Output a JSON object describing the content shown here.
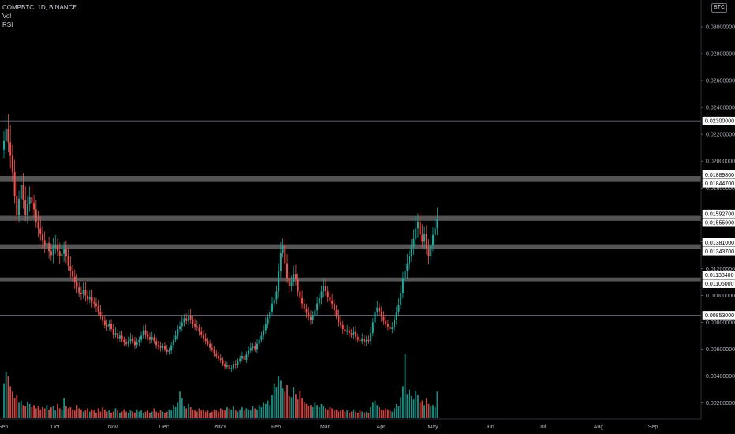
{
  "legend": {
    "symbol": "COMPBTC, 1D, BINANCE",
    "volume": "Vol",
    "rsi": "RSI"
  },
  "currency_badge": "BTC",
  "colors": {
    "background": "#000000",
    "up": "#26a69a",
    "down": "#ef5350",
    "zone": "#9a9a9a",
    "text": "#d1d4dc"
  },
  "chart_data": {
    "type": "candlestick",
    "price_axis": {
      "ylim": [
        0.0008,
        0.032
      ],
      "ticks": [
        "0.00200000",
        "0.00400000",
        "0.00600000",
        "0.00800000",
        "0.01000000",
        "0.01200000",
        "0.01400000",
        "0.01600000",
        "0.01800000",
        "0.02000000",
        "0.02200000",
        "0.02400000",
        "0.02600000",
        "0.02800000",
        "0.03000000"
      ]
    },
    "time_axis": {
      "labels": [
        "Sep",
        "Oct",
        "Nov",
        "Dec",
        "2021",
        "Feb",
        "Mar",
        "Apr",
        "May",
        "Jun",
        "Jul",
        "Aug",
        "Sep"
      ]
    },
    "levels": [
      {
        "label": "0.02300000",
        "value": 0.023,
        "type": "line"
      },
      {
        "label": "0.00853000",
        "value": 0.00853,
        "type": "line"
      }
    ],
    "zones": [
      {
        "top_label": "0.01889800",
        "bottom_label": "0.01844700",
        "top": 0.018898,
        "bottom": 0.018447
      },
      {
        "top_label": "0.01592700",
        "bottom_label": "0.01555900",
        "top": 0.015927,
        "bottom": 0.015559
      },
      {
        "top_label": "0.01381000",
        "bottom_label": "0.01343700",
        "top": 0.01381,
        "bottom": 0.013437
      },
      {
        "top_label": "0.01133400",
        "bottom_label": "0.01105000",
        "top": 0.011334,
        "bottom": 0.01105
      }
    ],
    "closes": [
      0.0215,
      0.0224,
      0.0214,
      0.0204,
      0.0192,
      0.0174,
      0.016,
      0.0172,
      0.0182,
      0.0171,
      0.016,
      0.0168,
      0.0173,
      0.0169,
      0.0164,
      0.0155,
      0.015,
      0.0146,
      0.0141,
      0.0137,
      0.0139,
      0.0133,
      0.013,
      0.0136,
      0.0137,
      0.0133,
      0.0129,
      0.0131,
      0.0135,
      0.0129,
      0.0122,
      0.0118,
      0.0114,
      0.011,
      0.0106,
      0.0102,
      0.0101,
      0.0104,
      0.01,
      0.0097,
      0.0099,
      0.0095,
      0.0094,
      0.0092,
      0.0088,
      0.0085,
      0.0081,
      0.0078,
      0.0077,
      0.0079,
      0.0075,
      0.0071,
      0.0072,
      0.0068,
      0.007,
      0.0067,
      0.0065,
      0.0064,
      0.0066,
      0.0068,
      0.0066,
      0.0063,
      0.0065,
      0.0067,
      0.007,
      0.0074,
      0.0071,
      0.0069,
      0.0067,
      0.0069,
      0.0066,
      0.0063,
      0.0062,
      0.0061,
      0.0062,
      0.006,
      0.0058,
      0.0059,
      0.0063,
      0.0067,
      0.007,
      0.0075,
      0.0077,
      0.008,
      0.0083,
      0.0081,
      0.0085,
      0.0082,
      0.0079,
      0.0077,
      0.0076,
      0.0073,
      0.0071,
      0.0068,
      0.0066,
      0.0064,
      0.0061,
      0.006,
      0.0057,
      0.0055,
      0.0053,
      0.0052,
      0.0049,
      0.0047,
      0.0048,
      0.0045,
      0.0046,
      0.0049,
      0.0048,
      0.0051,
      0.0053,
      0.0055,
      0.0052,
      0.0056,
      0.0059,
      0.0061,
      0.0062,
      0.006,
      0.0064,
      0.0067,
      0.007,
      0.0074,
      0.0079,
      0.0083,
      0.0088,
      0.0094,
      0.0097,
      0.0103,
      0.0118,
      0.0132,
      0.0137,
      0.0124,
      0.0113,
      0.0107,
      0.011,
      0.0116,
      0.0112,
      0.0103,
      0.0098,
      0.0094,
      0.009,
      0.0087,
      0.0084,
      0.0082,
      0.0085,
      0.0089,
      0.0094,
      0.0098,
      0.0103,
      0.0107,
      0.0103,
      0.0099,
      0.0096,
      0.0094,
      0.0089,
      0.0085,
      0.008,
      0.0078,
      0.0075,
      0.0073,
      0.0074,
      0.0072,
      0.0071,
      0.0073,
      0.0069,
      0.0067,
      0.0066,
      0.0068,
      0.0065,
      0.0067,
      0.0066,
      0.0072,
      0.008,
      0.0088,
      0.0091,
      0.0088,
      0.0084,
      0.0081,
      0.0079,
      0.0077,
      0.0075,
      0.0076,
      0.0082,
      0.0088,
      0.0093,
      0.0102,
      0.0113,
      0.0118,
      0.0124,
      0.0129,
      0.0136,
      0.0142,
      0.015,
      0.0155,
      0.0145,
      0.014,
      0.0146,
      0.0135,
      0.0129,
      0.0137,
      0.0145,
      0.015,
      0.0157
    ],
    "volumes": [
      0.31,
      0.42,
      0.38,
      0.29,
      0.24,
      0.18,
      0.21,
      0.14,
      0.16,
      0.12,
      0.11,
      0.15,
      0.13,
      0.1,
      0.12,
      0.09,
      0.11,
      0.08,
      0.1,
      0.09,
      0.12,
      0.08,
      0.1,
      0.11,
      0.07,
      0.13,
      0.09,
      0.08,
      0.18,
      0.11,
      0.09,
      0.1,
      0.08,
      0.07,
      0.12,
      0.09,
      0.08,
      0.06,
      0.07,
      0.09,
      0.06,
      0.08,
      0.07,
      0.05,
      0.09,
      0.06,
      0.1,
      0.08,
      0.06,
      0.07,
      0.05,
      0.06,
      0.09,
      0.07,
      0.05,
      0.06,
      0.08,
      0.06,
      0.05,
      0.07,
      0.06,
      0.05,
      0.08,
      0.06,
      0.07,
      0.05,
      0.06,
      0.07,
      0.05,
      0.06,
      0.09,
      0.06,
      0.05,
      0.07,
      0.06,
      0.05,
      0.06,
      0.08,
      0.07,
      0.12,
      0.1,
      0.14,
      0.24,
      0.18,
      0.11,
      0.09,
      0.13,
      0.1,
      0.08,
      0.07,
      0.06,
      0.09,
      0.07,
      0.08,
      0.06,
      0.07,
      0.05,
      0.06,
      0.08,
      0.07,
      0.06,
      0.09,
      0.08,
      0.07,
      0.1,
      0.09,
      0.08,
      0.11,
      0.07,
      0.06,
      0.08,
      0.1,
      0.07,
      0.09,
      0.08,
      0.07,
      0.11,
      0.09,
      0.08,
      0.12,
      0.1,
      0.14,
      0.13,
      0.16,
      0.12,
      0.21,
      0.31,
      0.28,
      0.38,
      0.34,
      0.27,
      0.24,
      0.3,
      0.2,
      0.19,
      0.28,
      0.22,
      0.17,
      0.25,
      0.18,
      0.15,
      0.13,
      0.11,
      0.12,
      0.1,
      0.14,
      0.12,
      0.1,
      0.13,
      0.11,
      0.09,
      0.08,
      0.1,
      0.09,
      0.07,
      0.08,
      0.06,
      0.07,
      0.08,
      0.06,
      0.07,
      0.05,
      0.06,
      0.08,
      0.06,
      0.05,
      0.07,
      0.06,
      0.05,
      0.06,
      0.05,
      0.1,
      0.14,
      0.16,
      0.12,
      0.1,
      0.08,
      0.07,
      0.09,
      0.08,
      0.07,
      0.06,
      0.09,
      0.13,
      0.11,
      0.19,
      0.29,
      0.58,
      0.22,
      0.26,
      0.2,
      0.17,
      0.25,
      0.21,
      0.14,
      0.16,
      0.12,
      0.18,
      0.13,
      0.11,
      0.12,
      0.1,
      0.24
    ]
  }
}
